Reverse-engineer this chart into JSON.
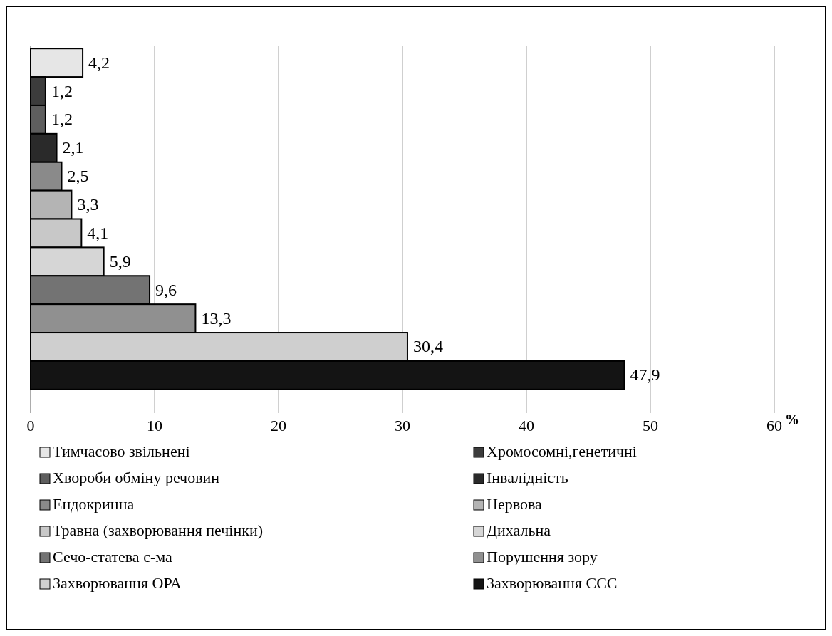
{
  "chart_data": {
    "type": "bar",
    "orientation": "horizontal",
    "stacked": true,
    "categories": [
      null,
      null,
      null,
      null,
      null,
      null,
      null,
      null,
      null,
      null,
      null,
      null
    ],
    "series": [
      {
        "name": "Тимчасово звільнені",
        "color": "#e6e6e6",
        "values": [
          4.2,
          null,
          null,
          null,
          null,
          null,
          null,
          null,
          null,
          null,
          null,
          null
        ],
        "value_labels": [
          "4,2",
          null,
          null,
          null,
          null,
          null,
          null,
          null,
          null,
          null,
          null,
          null
        ]
      },
      {
        "name": "Хромосомні,генетичні",
        "color": "#3c3c3c",
        "values": [
          null,
          1.2,
          null,
          null,
          null,
          null,
          null,
          null,
          null,
          null,
          null,
          null
        ],
        "value_labels": [
          null,
          "1,2",
          null,
          null,
          null,
          null,
          null,
          null,
          null,
          null,
          null,
          null
        ]
      },
      {
        "name": "Хвороби обміну речовин",
        "color": "#5e5e5e",
        "values": [
          null,
          null,
          1.2,
          null,
          null,
          null,
          null,
          null,
          null,
          null,
          null,
          null
        ],
        "value_labels": [
          null,
          null,
          "1,2",
          null,
          null,
          null,
          null,
          null,
          null,
          null,
          null,
          null
        ]
      },
      {
        "name": "Інвалідність",
        "color": "#2a2a2a",
        "values": [
          null,
          null,
          null,
          2.1,
          null,
          null,
          null,
          null,
          null,
          null,
          null,
          null
        ],
        "value_labels": [
          null,
          null,
          null,
          "2,1",
          null,
          null,
          null,
          null,
          null,
          null,
          null,
          null
        ]
      },
      {
        "name": "Ендокринна",
        "color": "#8a8a8a",
        "values": [
          null,
          null,
          null,
          null,
          2.5,
          null,
          null,
          null,
          null,
          null,
          null,
          null
        ],
        "value_labels": [
          null,
          null,
          null,
          null,
          "2,5",
          null,
          null,
          null,
          null,
          null,
          null,
          null
        ]
      },
      {
        "name": "Нервова",
        "color": "#b4b4b4",
        "values": [
          null,
          null,
          null,
          null,
          null,
          3.3,
          null,
          null,
          null,
          null,
          null,
          null
        ],
        "value_labels": [
          null,
          null,
          null,
          null,
          null,
          "3,3",
          null,
          null,
          null,
          null,
          null,
          null
        ]
      },
      {
        "name": "Травна (захворювання печінки)",
        "color": "#c8c8c8",
        "values": [
          null,
          null,
          null,
          null,
          null,
          null,
          4.1,
          null,
          null,
          null,
          null,
          null
        ],
        "value_labels": [
          null,
          null,
          null,
          null,
          null,
          null,
          "4,1",
          null,
          null,
          null,
          null,
          null
        ]
      },
      {
        "name": "Дихальна",
        "color": "#d6d6d6",
        "values": [
          null,
          null,
          null,
          null,
          null,
          null,
          null,
          5.9,
          null,
          null,
          null,
          null
        ],
        "value_labels": [
          null,
          null,
          null,
          null,
          null,
          null,
          null,
          "5,9",
          null,
          null,
          null,
          null
        ]
      },
      {
        "name": "Сечо-статева с-ма",
        "color": "#737373",
        "values": [
          null,
          null,
          null,
          null,
          null,
          null,
          null,
          null,
          9.6,
          null,
          null,
          null
        ],
        "value_labels": [
          null,
          null,
          null,
          null,
          null,
          null,
          null,
          null,
          "9,6",
          null,
          null,
          null
        ]
      },
      {
        "name": "Порушення зору",
        "color": "#909090",
        "values": [
          null,
          null,
          null,
          null,
          null,
          null,
          null,
          null,
          null,
          13.3,
          null,
          null
        ],
        "value_labels": [
          null,
          null,
          null,
          null,
          null,
          null,
          null,
          null,
          null,
          "13,3",
          null,
          null
        ]
      },
      {
        "name": "Захворювання ОРА",
        "color": "#cfcfcf",
        "values": [
          null,
          null,
          null,
          null,
          null,
          null,
          null,
          null,
          null,
          null,
          30.4,
          null
        ],
        "value_labels": [
          null,
          null,
          null,
          null,
          null,
          null,
          null,
          null,
          null,
          null,
          "30,4",
          null
        ]
      },
      {
        "name": "Захворювання ССС",
        "color": "#141414",
        "values": [
          null,
          null,
          null,
          null,
          null,
          null,
          null,
          null,
          null,
          null,
          null,
          47.9
        ],
        "value_labels": [
          null,
          null,
          null,
          null,
          null,
          null,
          null,
          null,
          null,
          null,
          null,
          "47,9"
        ]
      }
    ],
    "xlabel": "%",
    "xlim": [
      0,
      60
    ],
    "xticks": [
      0,
      10,
      20,
      30,
      40,
      50,
      60
    ],
    "grid": "x",
    "legend": "bottom"
  }
}
